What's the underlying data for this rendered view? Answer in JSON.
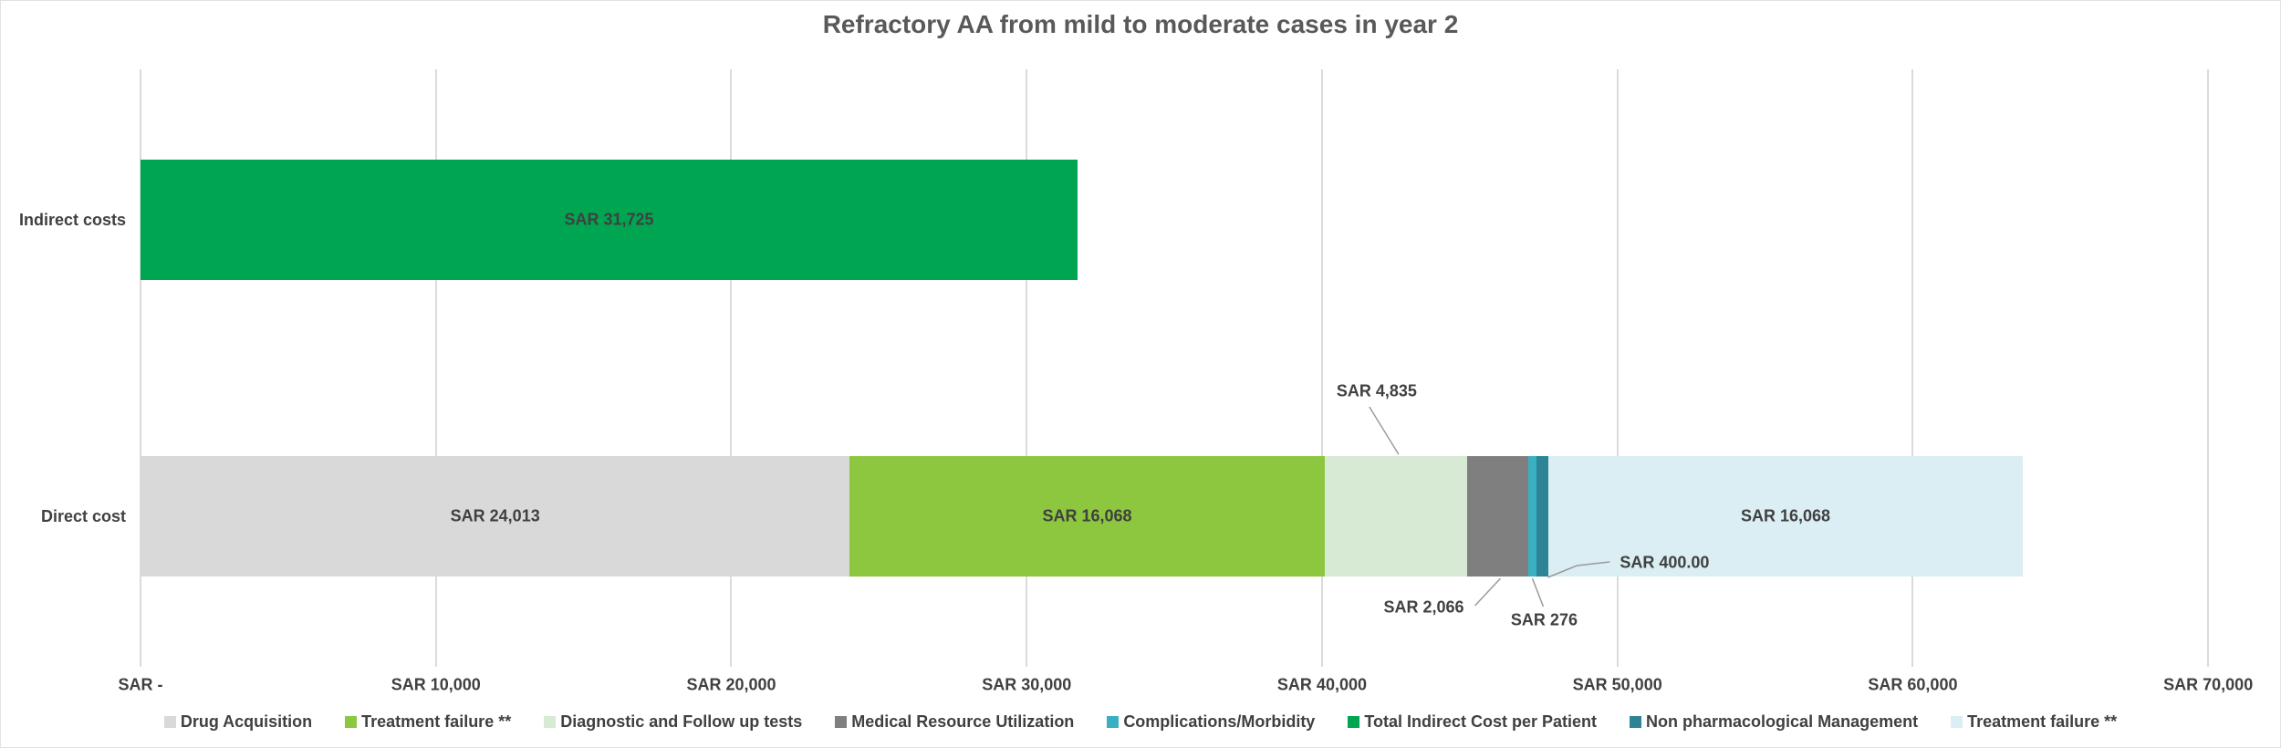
{
  "title": "Refractory AA from mild to moderate cases in year 2",
  "chart_data": {
    "type": "bar",
    "orientation": "horizontal",
    "stacked": true,
    "grid": true,
    "legend_position": "bottom",
    "currency": "SAR",
    "categories": [
      "Indirect costs",
      "Direct cost"
    ],
    "x_axis": {
      "min": 0,
      "max": 70000,
      "step": 10000,
      "tick_labels": [
        "SAR -",
        "SAR 10,000",
        "SAR 20,000",
        "SAR 30,000",
        "SAR 40,000",
        "SAR 50,000",
        "SAR 60,000",
        "SAR 70,000"
      ]
    },
    "rows": [
      {
        "category": "Indirect costs",
        "segments": [
          {
            "name": "Total Indirect Cost per Patient",
            "value": 31725,
            "label": "SAR 31,725",
            "color": "#00A551",
            "label_placement": "inside"
          }
        ]
      },
      {
        "category": "Direct cost",
        "segments": [
          {
            "name": "Drug Acquisition",
            "value": 24013,
            "label": "SAR 24,013",
            "color": "#D9D9D9",
            "label_placement": "inside"
          },
          {
            "name": "Treatment failure **",
            "value": 16068,
            "label": "SAR 16,068",
            "color": "#8DC63F",
            "label_placement": "inside"
          },
          {
            "name": "Diagnostic and Follow up tests",
            "value": 4835,
            "label": "SAR 4,835",
            "color": "#D7EAD3",
            "label_placement": "callout-above"
          },
          {
            "name": "Medical Resource Utilization",
            "value": 2066,
            "label": "SAR 2,066",
            "color": "#7F7F7F",
            "label_placement": "callout-below-left"
          },
          {
            "name": "Complications/Morbidity",
            "value": 276,
            "label": "SAR 276",
            "color": "#3BAFC2",
            "label_placement": "callout-below"
          },
          {
            "name": "Non pharmacological Management",
            "value": 400,
            "label": "SAR 400.00",
            "color": "#2C8496",
            "label_placement": "callout-right"
          },
          {
            "name": "Treatment failure **",
            "value": 16068,
            "label": "SAR 16,068",
            "color": "#DAEEF3",
            "label_placement": "inside"
          }
        ]
      }
    ],
    "legend": [
      {
        "label": "Drug Acquisition",
        "color": "#D9D9D9"
      },
      {
        "label": "Treatment failure **",
        "color": "#8DC63F"
      },
      {
        "label": "Diagnostic and Follow up tests",
        "color": "#D7EAD3"
      },
      {
        "label": "Medical Resource Utilization",
        "color": "#7F7F7F"
      },
      {
        "label": "Complications/Morbidity",
        "color": "#3BAFC2"
      },
      {
        "label": "Total Indirect Cost per Patient",
        "color": "#00A551"
      },
      {
        "label": "Non pharmacological Management",
        "color": "#2C8496"
      },
      {
        "label": "Treatment failure **",
        "color": "#DAEEF3"
      }
    ]
  },
  "colors": {
    "text": "#404040",
    "title": "#595959",
    "gridline": "#DBDBDB",
    "leader_line": "#9B9B9B",
    "background": "#FFFFFF"
  }
}
